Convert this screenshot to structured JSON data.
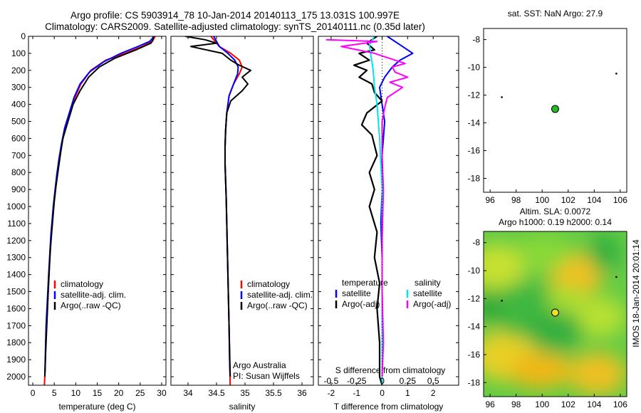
{
  "header": {
    "title_line1": "Argo profile: CS 5903914_78 10-Jan-2014 20140113_175 13.031S 100.997E",
    "title_line2": "Climatology: CARS2009. Satellite-adjusted climatology: synTS_20140111.nc (0.35d later)"
  },
  "colors": {
    "climatology": "#ff0000",
    "satellite": "#0000ff",
    "argo": "#000000",
    "salinity_satellite": "#00e5ee",
    "salinity_argo": "#ff00ff",
    "marker_sst": "#22bb22",
    "marker_sla": "#f0e020"
  },
  "side_label": "IMOS 18-Jan-2014 20:01:14",
  "chart_data": [
    {
      "type": "line",
      "id": "temperature",
      "xlabel": "temperature (deg C)",
      "ylabel": "",
      "xlim": [
        -1,
        31
      ],
      "ylim": [
        2050,
        0
      ],
      "xticks": [
        0,
        5,
        10,
        15,
        20,
        25,
        30
      ],
      "yticks": [
        0,
        100,
        200,
        300,
        400,
        500,
        600,
        700,
        800,
        900,
        1000,
        1100,
        1200,
        1300,
        1400,
        1500,
        1600,
        1700,
        1800,
        1900,
        2000
      ],
      "legend": [
        "climatology",
        "satellite-adj. clim.",
        "Argo(..raw -QC)"
      ],
      "series": [
        {
          "name": "climatology",
          "x": [
            28.5,
            27.8,
            25.5,
            21.5,
            17.0,
            13.5,
            11.2,
            9.8,
            8.6,
            7.5,
            6.8,
            6.2,
            5.7,
            5.3,
            4.9,
            4.6,
            4.3,
            4.0,
            3.8,
            3.6,
            3.4,
            3.2,
            3.0,
            2.9,
            2.7
          ],
          "y": [
            0,
            30,
            60,
            100,
            140,
            200,
            280,
            360,
            450,
            540,
            630,
            720,
            810,
            900,
            990,
            1080,
            1170,
            1260,
            1400,
            1500,
            1600,
            1700,
            1800,
            1950,
            2050
          ]
        },
        {
          "name": "satellite-adj. clim.",
          "x": [
            28.3,
            27.2,
            24.5,
            20.5,
            16.5,
            13.2,
            11.0,
            9.6,
            8.5,
            7.4,
            6.7,
            6.1,
            5.6,
            5.2,
            4.8,
            4.5,
            4.2,
            4.0,
            3.7,
            3.5,
            3.3,
            3.1,
            3.0,
            2.8
          ],
          "y": [
            0,
            30,
            60,
            100,
            150,
            210,
            280,
            360,
            450,
            540,
            630,
            720,
            810,
            900,
            990,
            1080,
            1170,
            1260,
            1400,
            1500,
            1600,
            1700,
            1800,
            2000
          ]
        },
        {
          "name": "Argo(..raw -QC)",
          "x": [
            28.0,
            28.0,
            27.5,
            24.0,
            19.0,
            15.5,
            13.0,
            11.0,
            9.4,
            8.2,
            7.0,
            6.4,
            5.9,
            5.4,
            5.0,
            4.7,
            4.4,
            4.1,
            3.8,
            3.6,
            3.4,
            3.2,
            3.0,
            2.8
          ],
          "y": [
            0,
            20,
            40,
            80,
            130,
            180,
            240,
            320,
            400,
            500,
            600,
            700,
            790,
            880,
            970,
            1060,
            1150,
            1250,
            1380,
            1500,
            1620,
            1740,
            1860,
            2000
          ]
        }
      ]
    },
    {
      "type": "line",
      "id": "salinity",
      "xlabel": "salinity",
      "xlim": [
        33.7,
        36.2
      ],
      "ylim": [
        2050,
        0
      ],
      "xticks": [
        34,
        34.5,
        35,
        35.5,
        36
      ],
      "legend": [
        "climatology",
        "satellite-adj. clim.",
        "Argo(..raw -QC)"
      ],
      "annotation_lines": [
        "Argo Australia",
        "PI: Susan Wijffels"
      ],
      "series": [
        {
          "name": "climatology",
          "x": [
            34.4,
            34.55,
            34.75,
            34.9,
            34.95,
            34.9,
            34.8,
            34.72,
            34.68,
            34.66,
            34.65,
            34.65,
            34.66,
            34.67,
            34.68,
            34.69,
            34.7,
            34.71,
            34.72,
            34.73,
            34.74
          ],
          "y": [
            0,
            60,
            100,
            140,
            180,
            220,
            280,
            350,
            450,
            550,
            650,
            750,
            850,
            950,
            1100,
            1250,
            1400,
            1550,
            1700,
            1900,
            2050
          ]
        },
        {
          "name": "satellite-adj. clim.",
          "x": [
            34.45,
            34.55,
            34.7,
            34.82,
            34.88,
            34.87,
            34.8,
            34.72,
            34.68,
            34.66,
            34.65,
            34.65,
            34.66,
            34.67,
            34.68,
            34.69,
            34.7,
            34.71,
            34.72,
            34.73,
            34.74
          ],
          "y": [
            0,
            60,
            100,
            140,
            180,
            220,
            280,
            350,
            450,
            550,
            650,
            750,
            850,
            950,
            1100,
            1250,
            1400,
            1550,
            1700,
            1900,
            2000
          ]
        },
        {
          "name": "Argo(..raw -QC)",
          "x": [
            33.95,
            34.3,
            34.5,
            34.05,
            34.6,
            34.75,
            34.9,
            35.1,
            34.95,
            35.05,
            34.95,
            34.75,
            34.68,
            34.66,
            34.65,
            34.65,
            34.66,
            34.67,
            34.68,
            34.69,
            34.7,
            34.71,
            34.72,
            34.73,
            34.74
          ],
          "y": [
            0,
            20,
            40,
            60,
            100,
            140,
            170,
            200,
            240,
            280,
            320,
            380,
            450,
            550,
            650,
            750,
            850,
            950,
            1100,
            1250,
            1400,
            1550,
            1700,
            1850,
            2000
          ]
        }
      ]
    },
    {
      "type": "line",
      "id": "difference",
      "xlabel": "T difference from climatology",
      "xlabel_top": "S difference from climatology",
      "xlim": [
        -2.5,
        3
      ],
      "ylim": [
        2050,
        0
      ],
      "xticks": [
        -2,
        -1,
        0,
        1,
        2
      ],
      "top_ticks": [
        "-0.5",
        "-0.25",
        "0",
        "0.25",
        "0.5"
      ],
      "legend_groups": [
        {
          "heading": "temperature",
          "items": [
            "satellite",
            "Argo(-adj)"
          ]
        },
        {
          "heading": "salinity",
          "items": [
            "satellite",
            "Argo(-adj)"
          ]
        }
      ],
      "series": [
        {
          "name": "temperature satellite",
          "x": [
            0.2,
            0.8,
            1.2,
            0.7,
            0.4,
            0.1,
            -0.1,
            0.0,
            0.1,
            0.0,
            0.0,
            -0.05,
            0.0,
            0.0,
            0.0
          ],
          "y": [
            0,
            60,
            100,
            140,
            180,
            240,
            300,
            400,
            500,
            700,
            900,
            1100,
            1300,
            1600,
            2000
          ]
        },
        {
          "name": "temperature Argo(-adj)",
          "x": [
            -0.2,
            -0.6,
            -0.3,
            -0.9,
            -0.5,
            -1.1,
            -0.6,
            -0.9,
            -0.4,
            -0.3,
            0.0,
            -0.6,
            -0.8,
            -0.4,
            -0.2,
            -0.5,
            -0.3,
            -0.5,
            -0.2,
            -0.3,
            -0.1,
            -0.2,
            -0.1,
            -0.1,
            0.0
          ],
          "y": [
            0,
            40,
            80,
            100,
            140,
            170,
            200,
            240,
            280,
            330,
            380,
            450,
            520,
            580,
            700,
            800,
            900,
            1000,
            1150,
            1300,
            1450,
            1600,
            1800,
            2000,
            2050
          ]
        },
        {
          "name": "salinity satellite",
          "x": [
            -0.3,
            -0.5,
            -0.45,
            -0.4,
            -0.35,
            -0.3,
            -0.2,
            -0.1,
            0.0,
            0.0,
            0.0,
            0.0
          ],
          "y": [
            0,
            50,
            100,
            150,
            200,
            300,
            400,
            600,
            900,
            1300,
            1700,
            2050
          ]
        },
        {
          "name": "salinity Argo(-adj)",
          "x": [
            -2.2,
            -0.2,
            -1.6,
            -0.3,
            0.9,
            0.4,
            0.5,
            1.0,
            0.3,
            0.8,
            0.2,
            0.1,
            0.0,
            0.0,
            0.05,
            0.0,
            0.0,
            0.05,
            0.0
          ],
          "y": [
            20,
            30,
            60,
            100,
            160,
            180,
            210,
            240,
            270,
            300,
            360,
            420,
            500,
            700,
            900,
            1200,
            1500,
            1800,
            2000
          ]
        }
      ]
    },
    {
      "type": "scatter",
      "id": "sst_map",
      "title": "sat. SST: NaN Argo: 27.9",
      "xlim": [
        95.5,
        106.5
      ],
      "ylim": [
        -19,
        -7.2
      ],
      "xticks": [
        96,
        98,
        100,
        102,
        104,
        106
      ],
      "yticks": [
        -8,
        -10,
        -12,
        -14,
        -16,
        -18
      ],
      "points": [
        {
          "x": 101.0,
          "y": -13.0
        }
      ]
    },
    {
      "type": "heatmap",
      "id": "sla_map",
      "title_line1": "Altim. SLA: 0.0072",
      "title_line2": "Argo h1000: 0.19 h2000: 0.14",
      "xlim": [
        95.5,
        106.5
      ],
      "ylim": [
        -19,
        -7.2
      ],
      "xticks": [
        96,
        98,
        100,
        102,
        104,
        106
      ],
      "yticks": [
        -8,
        -10,
        -12,
        -14,
        -16,
        -18
      ],
      "points": [
        {
          "x": 101.0,
          "y": -13.0
        }
      ]
    }
  ]
}
